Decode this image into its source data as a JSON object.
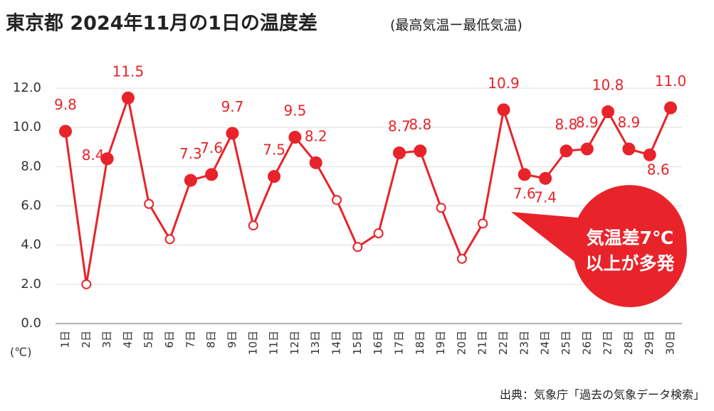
{
  "chart_data": {
    "type": "line",
    "title": "東京都 2024年11月の1日の温度差",
    "subtitle": "(最高気温ー最低気温)",
    "y_unit": "(℃)",
    "annotation": [
      "気温差7℃",
      "以上が多発"
    ],
    "source": "出典：気象庁「過去の気象データ検索」",
    "categories": [
      "1日",
      "2日",
      "3日",
      "4日",
      "5日",
      "6日",
      "7日",
      "8日",
      "9日",
      "10日",
      "11日",
      "12日",
      "13日",
      "14日",
      "15日",
      "16日",
      "17日",
      "18日",
      "19日",
      "20日",
      "21日",
      "22日",
      "23日",
      "24日",
      "25日",
      "26日",
      "27日",
      "28日",
      "29日",
      "30日"
    ],
    "values": [
      9.8,
      2.0,
      8.4,
      11.5,
      6.1,
      4.3,
      7.3,
      7.6,
      9.7,
      5.0,
      7.5,
      9.5,
      8.2,
      6.3,
      3.9,
      4.6,
      8.7,
      8.8,
      5.9,
      3.3,
      5.1,
      10.9,
      7.6,
      7.4,
      8.8,
      8.9,
      10.8,
      8.9,
      8.6,
      11.0
    ],
    "value_labels": [
      "9.8",
      null,
      "8.4",
      "11.5",
      null,
      null,
      "7.3",
      "7.6",
      "9.7",
      null,
      "7.5",
      "9.5",
      "8.2",
      null,
      null,
      null,
      "8.7",
      "8.8",
      null,
      null,
      null,
      "10.9",
      "7.6",
      "7.4",
      "8.8",
      "8.9",
      "10.8",
      "8.9",
      "8.6",
      "11.0"
    ],
    "color": "#e8232a",
    "ylim": [
      0,
      12
    ],
    "yticks": [
      {
        "value": 0,
        "label": "0.0"
      },
      {
        "value": 2,
        "label": "2.0"
      },
      {
        "value": 4,
        "label": "4.0"
      },
      {
        "value": 6,
        "label": "6.0"
      },
      {
        "value": 8,
        "label": "8.0"
      },
      {
        "value": 10,
        "label": "10.0"
      },
      {
        "value": 12,
        "label": "12.0"
      }
    ],
    "grid": true
  }
}
